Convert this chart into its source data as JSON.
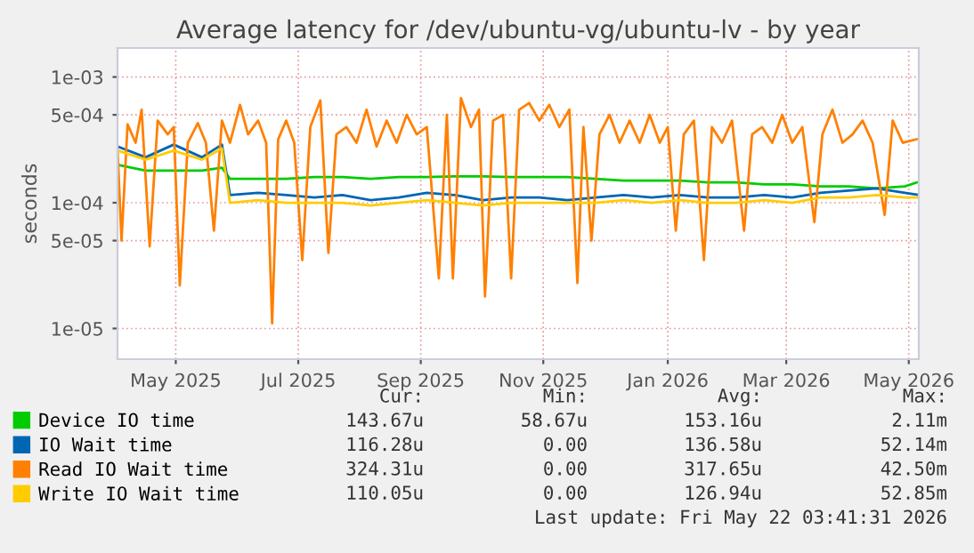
{
  "chart_data": {
    "type": "line",
    "title": "Average latency for /dev/ubuntu-vg/ubuntu-lv - by year",
    "ylabel": "seconds",
    "log": "y",
    "grid": true,
    "legend": "bottom",
    "marker": "none",
    "line_style": "solid",
    "xlim": [
      "2025-04-17",
      "2026-05-21"
    ],
    "xticks": [
      {
        "value": "2025-05-16",
        "label": "May 2025"
      },
      {
        "value": "2025-07-16",
        "label": "Jul 2025"
      },
      {
        "value": "2025-09-15",
        "label": "Sep 2025"
      },
      {
        "value": "2025-11-15",
        "label": "Nov 2025"
      },
      {
        "value": "2026-01-16",
        "label": "Jan 2026"
      },
      {
        "value": "2026-03-16",
        "label": "Mar 2026"
      },
      {
        "value": "2026-05-16",
        "label": "May 2026"
      }
    ],
    "ylim": [
      5.7e-06,
      0.0017
    ],
    "yticks": [
      {
        "value": 1e-05,
        "label": "1e-05"
      },
      {
        "value": 5e-05,
        "label": "5e-05"
      },
      {
        "value": 0.0001,
        "label": "1e-04"
      },
      {
        "value": 0.0005,
        "label": "5e-04"
      },
      {
        "value": 0.001,
        "label": "1e-03"
      }
    ],
    "series": [
      {
        "name": "Device IO time",
        "color": "#00cc00",
        "x": [
          "2025-04-17",
          "2025-05-01",
          "2025-05-15",
          "2025-05-29",
          "2025-06-08",
          "2025-06-12",
          "2025-06-26",
          "2025-07-10",
          "2025-07-24",
          "2025-08-07",
          "2025-08-21",
          "2025-09-04",
          "2025-09-18",
          "2025-10-02",
          "2025-10-16",
          "2025-10-30",
          "2025-11-13",
          "2025-11-27",
          "2025-12-11",
          "2025-12-25",
          "2026-01-08",
          "2026-01-22",
          "2026-02-05",
          "2026-02-19",
          "2026-03-05",
          "2026-03-19",
          "2026-04-02",
          "2026-04-16",
          "2026-04-30",
          "2026-05-14",
          "2026-05-20"
        ],
        "values": [
          0.0002,
          0.00018,
          0.00018,
          0.00018,
          0.00019,
          0.000155,
          0.000155,
          0.000155,
          0.00016,
          0.00016,
          0.000155,
          0.00016,
          0.00016,
          0.000162,
          0.000162,
          0.00016,
          0.00016,
          0.00016,
          0.000155,
          0.00015,
          0.00015,
          0.00015,
          0.000145,
          0.000145,
          0.00014,
          0.00014,
          0.000135,
          0.000135,
          0.00013,
          0.000135,
          0.000145
        ]
      },
      {
        "name": "IO Wait time",
        "color": "#0066b3",
        "x": [
          "2025-04-17",
          "2025-05-01",
          "2025-05-15",
          "2025-05-29",
          "2025-06-08",
          "2025-06-12",
          "2025-06-26",
          "2025-07-10",
          "2025-07-24",
          "2025-08-07",
          "2025-08-21",
          "2025-09-04",
          "2025-09-18",
          "2025-10-02",
          "2025-10-16",
          "2025-10-30",
          "2025-11-13",
          "2025-11-27",
          "2025-12-11",
          "2025-12-25",
          "2026-01-08",
          "2026-01-22",
          "2026-02-05",
          "2026-02-19",
          "2026-03-05",
          "2026-03-19",
          "2026-04-02",
          "2026-04-16",
          "2026-04-30",
          "2026-05-14",
          "2026-05-20"
        ],
        "values": [
          0.00028,
          0.00023,
          0.00029,
          0.00023,
          0.00029,
          0.000115,
          0.00012,
          0.000115,
          0.00011,
          0.000115,
          0.000105,
          0.00011,
          0.00012,
          0.000115,
          0.000105,
          0.00011,
          0.00011,
          0.000105,
          0.00011,
          0.000115,
          0.00011,
          0.000115,
          0.00011,
          0.00011,
          0.000115,
          0.00011,
          0.00012,
          0.000125,
          0.00013,
          0.00012,
          0.000116
        ]
      },
      {
        "name": "Read IO Wait time",
        "color": "#ff8000",
        "x": [
          "2025-04-17",
          "2025-04-19",
          "2025-04-22",
          "2025-04-26",
          "2025-04-29",
          "2025-05-03",
          "2025-05-07",
          "2025-05-12",
          "2025-05-15",
          "2025-05-18",
          "2025-05-22",
          "2025-05-27",
          "2025-05-31",
          "2025-06-04",
          "2025-06-08",
          "2025-06-12",
          "2025-06-17",
          "2025-06-21",
          "2025-06-26",
          "2025-06-30",
          "2025-07-03",
          "2025-07-06",
          "2025-07-10",
          "2025-07-14",
          "2025-07-18",
          "2025-07-22",
          "2025-07-27",
          "2025-07-31",
          "2025-08-04",
          "2025-08-09",
          "2025-08-14",
          "2025-08-19",
          "2025-08-24",
          "2025-08-29",
          "2025-09-03",
          "2025-09-08",
          "2025-09-13",
          "2025-09-18",
          "2025-09-24",
          "2025-09-28",
          "2025-10-01",
          "2025-10-05",
          "2025-10-10",
          "2025-10-14",
          "2025-10-17",
          "2025-10-21",
          "2025-10-26",
          "2025-10-30",
          "2025-11-03",
          "2025-11-08",
          "2025-11-13",
          "2025-11-18",
          "2025-11-23",
          "2025-11-28",
          "2025-12-02",
          "2025-12-05",
          "2025-12-09",
          "2025-12-13",
          "2025-12-18",
          "2025-12-23",
          "2025-12-28",
          "2026-01-02",
          "2026-01-07",
          "2026-01-12",
          "2026-01-16",
          "2026-01-20",
          "2026-01-24",
          "2026-01-29",
          "2026-02-03",
          "2026-02-07",
          "2026-02-12",
          "2026-02-17",
          "2026-02-23",
          "2026-02-27",
          "2026-03-04",
          "2026-03-09",
          "2026-03-14",
          "2026-03-19",
          "2026-03-24",
          "2026-03-30",
          "2026-04-03",
          "2026-04-08",
          "2026-04-13",
          "2026-04-18",
          "2026-04-23",
          "2026-04-28",
          "2026-05-04",
          "2026-05-08",
          "2026-05-13",
          "2026-05-20"
        ],
        "values": [
          0.00027,
          5e-05,
          0.00042,
          0.0003,
          0.00055,
          4.5e-05,
          0.00045,
          0.00035,
          0.0004,
          2.2e-05,
          0.0003,
          0.00043,
          0.0003,
          6e-05,
          0.00045,
          0.0003,
          0.0006,
          0.00035,
          0.00045,
          0.0003,
          1.1e-05,
          0.00032,
          0.00045,
          0.0003,
          3.5e-05,
          0.0004,
          0.00065,
          4e-05,
          0.00035,
          0.0004,
          0.0003,
          0.00055,
          0.00028,
          0.00045,
          0.0003,
          0.0005,
          0.00035,
          0.0004,
          2.5e-05,
          0.0005,
          2.5e-05,
          0.00068,
          0.0004,
          0.00055,
          1.8e-05,
          0.00045,
          0.0005,
          2.5e-05,
          0.00055,
          0.00062,
          0.00045,
          0.0006,
          0.0004,
          0.00055,
          2.3e-05,
          0.0004,
          5e-05,
          0.00035,
          0.0005,
          0.0003,
          0.00045,
          0.0003,
          0.0005,
          0.0003,
          0.0004,
          6e-05,
          0.00035,
          0.00045,
          3.5e-05,
          0.0004,
          0.0003,
          0.00045,
          6e-05,
          0.00035,
          0.0004,
          0.0003,
          0.0005,
          0.0003,
          0.0004,
          7e-05,
          0.00035,
          0.00055,
          0.0003,
          0.00035,
          0.00045,
          0.0003,
          8e-05,
          0.00045,
          0.0003,
          0.00032
        ]
      },
      {
        "name": "Write IO Wait time",
        "color": "#ffcc00",
        "x": [
          "2025-04-17",
          "2025-05-01",
          "2025-05-15",
          "2025-05-29",
          "2025-06-08",
          "2025-06-12",
          "2025-06-26",
          "2025-07-10",
          "2025-07-24",
          "2025-08-07",
          "2025-08-21",
          "2025-09-04",
          "2025-09-18",
          "2025-10-02",
          "2025-10-16",
          "2025-10-30",
          "2025-11-13",
          "2025-11-27",
          "2025-12-11",
          "2025-12-25",
          "2026-01-08",
          "2026-01-22",
          "2026-02-05",
          "2026-02-19",
          "2026-03-05",
          "2026-03-19",
          "2026-04-02",
          "2026-04-16",
          "2026-04-30",
          "2026-05-14",
          "2026-05-20"
        ],
        "values": [
          0.00026,
          0.00022,
          0.00026,
          0.00022,
          0.00027,
          0.0001,
          0.000105,
          0.0001,
          0.0001,
          0.0001,
          9.5e-05,
          0.0001,
          0.000105,
          0.0001,
          9.5e-05,
          0.0001,
          0.0001,
          0.0001,
          0.0001,
          0.000105,
          0.0001,
          0.000105,
          0.0001,
          0.0001,
          0.000105,
          0.0001,
          0.00011,
          0.00011,
          0.000115,
          0.00011,
          0.00011
        ]
      }
    ],
    "annotations": [
      "Cur:",
      "Min:",
      "Avg:",
      "Max:",
      "143.67u",
      "58.67u",
      "153.16u",
      "2.11m",
      "116.28u",
      "0.00",
      "136.58u",
      "52.14m",
      "324.31u",
      "0.00",
      "317.65u",
      "42.50m",
      "110.05u",
      "0.00",
      "126.94u",
      "52.85m",
      "Last update: Fri May 22 03:41:31 2026"
    ]
  }
}
